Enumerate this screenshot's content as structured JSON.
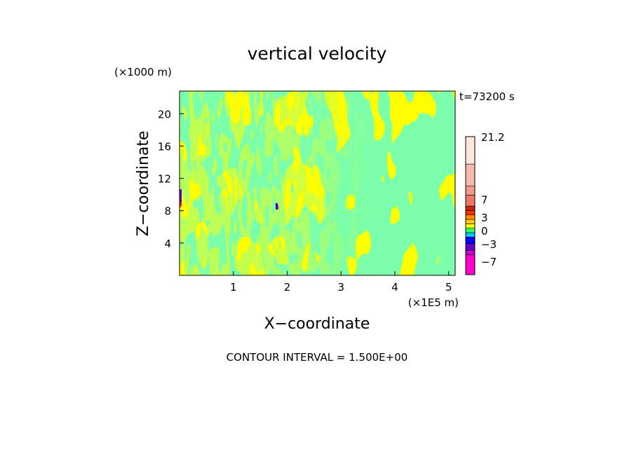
{
  "chart_data": {
    "type": "heatmap",
    "title": "vertical velocity",
    "xlabel": "X−coordinate",
    "ylabel": "Z−coordinate",
    "x_unit_label": "(×1E5 m)",
    "y_unit_label": "(×1000 m)",
    "time_label": "t=73200 s",
    "footer": "CONTOUR INTERVAL = 1.500E+00",
    "xlim": [
      0,
      5.12
    ],
    "ylim": [
      0,
      22.8
    ],
    "x_ticks": [
      1,
      2,
      3,
      4,
      5
    ],
    "x_tick_labels": [
      "1",
      "2",
      "3",
      "4",
      "5"
    ],
    "y_ticks": [
      4,
      8,
      12,
      16,
      20
    ],
    "y_tick_labels": [
      "4",
      "8",
      "12",
      "16",
      "20"
    ],
    "dominant_field_colors": [
      "#ffff00",
      "#33ff66"
    ],
    "colorbar": {
      "min": -10,
      "max": 21.2,
      "labels": [
        {
          "value": 21.2,
          "text": "21.2"
        },
        {
          "value": 7,
          "text": "7"
        },
        {
          "value": 3,
          "text": "3"
        },
        {
          "value": 0,
          "text": "0"
        },
        {
          "value": -3,
          "text": "−3"
        },
        {
          "value": -7,
          "text": "−7"
        }
      ],
      "levels": [
        {
          "from": -10,
          "to": -5.5,
          "color": "#ff00cc"
        },
        {
          "from": -5.5,
          "to": -4.5,
          "color": "#cc00cc"
        },
        {
          "from": -4.5,
          "to": -3,
          "color": "#6600cc"
        },
        {
          "from": -3,
          "to": -1.5,
          "color": "#0000ff"
        },
        {
          "from": -1.5,
          "to": -0.5,
          "color": "#00ccff"
        },
        {
          "from": -0.5,
          "to": 0.5,
          "color": "#33ff66"
        },
        {
          "from": 0.5,
          "to": 1.5,
          "color": "#ffff00"
        },
        {
          "from": 1.5,
          "to": 2.5,
          "color": "#ffcc00"
        },
        {
          "from": 2.5,
          "to": 3.5,
          "color": "#ff8800"
        },
        {
          "from": 3.5,
          "to": 4.5,
          "color": "#ff3300"
        },
        {
          "from": 4.5,
          "to": 5.5,
          "color": "#cc2200"
        },
        {
          "from": 5.5,
          "to": 8,
          "color": "#ee7766"
        },
        {
          "from": 8,
          "to": 10,
          "color": "#f39a90"
        },
        {
          "from": 10,
          "to": 15,
          "color": "#f7b8b0"
        },
        {
          "from": 15,
          "to": 21.2,
          "color": "#fde6e0"
        }
      ]
    },
    "grid": false,
    "legend": "right"
  }
}
